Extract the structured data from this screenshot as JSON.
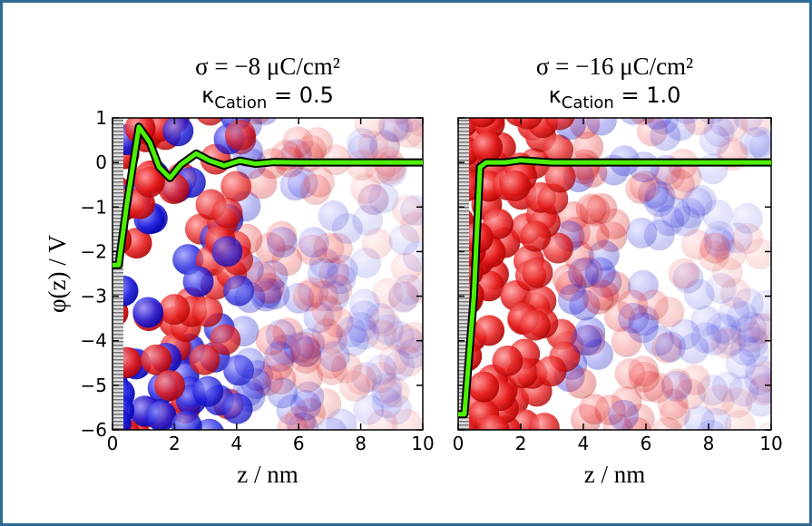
{
  "chart_data": [
    {
      "type": "line",
      "title": "σ = −8 μC/cm²",
      "subtitle": {
        "symbol": "κ",
        "subscript": "Cation",
        "text": " = 0.5"
      },
      "ylabel": "φ(z) / V",
      "xlabel": "z / nm",
      "x": [
        0,
        0.2,
        0.45,
        0.85,
        1.2,
        1.5,
        1.85,
        2.2,
        2.7,
        3.1,
        3.6,
        4.1,
        4.6,
        5.2,
        6,
        7,
        10
      ],
      "values": [
        -2.3,
        -2.3,
        -1.0,
        0.8,
        0.45,
        -0.1,
        -0.35,
        -0.05,
        0.2,
        0.05,
        -0.07,
        0.04,
        -0.03,
        0.01,
        0,
        0,
        0
      ],
      "color": "#4cf000",
      "xlim": [
        0,
        10
      ],
      "xticks": [
        0,
        2,
        4,
        6,
        8,
        10
      ],
      "ylim": [
        -6,
        1
      ],
      "show_ytick_labels": true,
      "yticks": [
        {
          "value": -6,
          "label": "−6"
        },
        {
          "value": -5,
          "label": "−5"
        },
        {
          "value": -4,
          "label": "−4"
        },
        {
          "value": -3,
          "label": "−3"
        },
        {
          "value": -2,
          "label": "−2"
        },
        {
          "value": -1,
          "label": "−1"
        },
        0,
        1
      ]
    },
    {
      "type": "line",
      "title": "σ = −16 μC/cm²",
      "subtitle": {
        "symbol": "κ",
        "subscript": "Cation",
        "text": " = 1.0"
      },
      "xlabel": "z / nm",
      "x": [
        0,
        0.2,
        0.5,
        0.7,
        0.9,
        1.5,
        2,
        3,
        10
      ],
      "values": [
        -5.65,
        -5.65,
        -3.0,
        -0.1,
        0,
        0,
        0.05,
        0,
        0
      ],
      "color": "#4cf000",
      "xlim": [
        0,
        10
      ],
      "xticks": [
        0,
        2,
        4,
        6,
        8,
        10
      ],
      "ylim": [
        -6,
        1
      ],
      "show_ytick_labels": false,
      "yticks": [
        -6,
        -5,
        -4,
        -3,
        -2,
        -1,
        0,
        1
      ]
    }
  ]
}
